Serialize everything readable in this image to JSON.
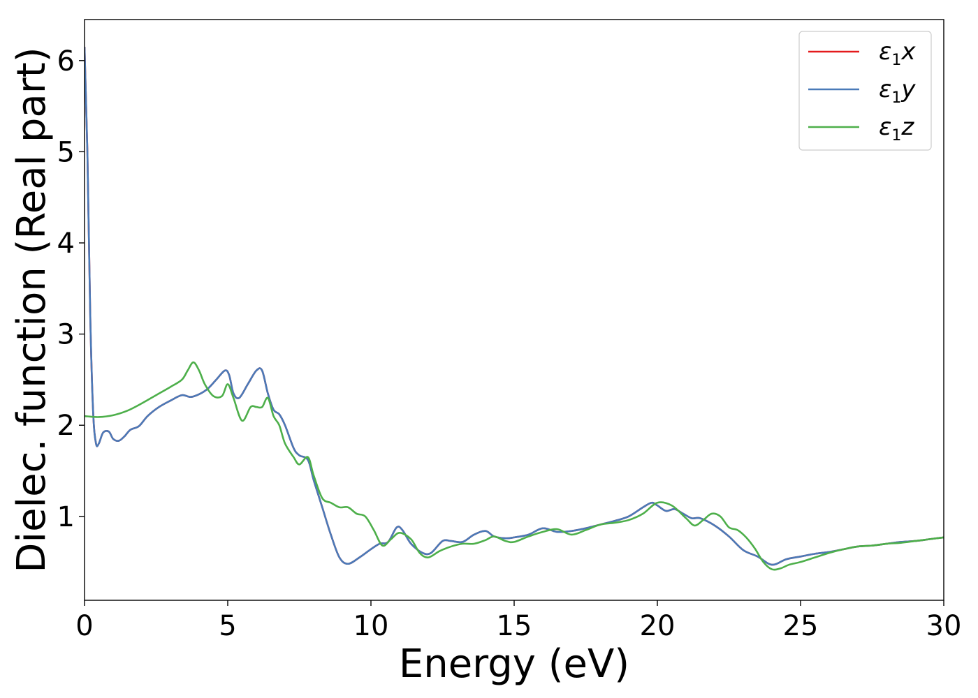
{
  "chart_data": {
    "type": "line",
    "title": "",
    "xlabel": "Energy (eV)",
    "ylabel": "Dielec. function (Real part)",
    "xlim": [
      0,
      30
    ],
    "ylim": [
      0.08,
      6.45
    ],
    "xticks": [
      0,
      5,
      10,
      15,
      20,
      25,
      30
    ],
    "yticks": [
      1,
      2,
      3,
      4,
      5,
      6
    ],
    "grid": false,
    "legend_position": "top-right",
    "series": [
      {
        "name": "ε₁x",
        "label_base": "ε",
        "label_sub": "1",
        "label_var": "x",
        "color": "#e41a1c",
        "x": [
          0,
          0.1,
          0.2,
          0.3,
          0.4,
          0.5,
          0.65,
          0.85,
          1.0,
          1.2,
          1.4,
          1.6,
          1.9,
          2.2,
          2.6,
          3.0,
          3.4,
          3.7,
          4.0,
          4.3,
          4.6,
          4.9,
          5.05,
          5.2,
          5.4,
          5.7,
          6.0,
          6.2,
          6.4,
          6.6,
          6.8,
          7.0,
          7.3,
          7.5,
          7.8,
          8.0,
          8.3,
          8.6,
          8.9,
          9.2,
          9.6,
          10.0,
          10.3,
          10.6,
          10.9,
          11.1,
          11.4,
          11.8,
          12.1,
          12.5,
          12.8,
          13.2,
          13.6,
          14.0,
          14.3,
          14.7,
          15.0,
          15.5,
          16.0,
          16.5,
          17.0,
          17.5,
          18.0,
          18.5,
          19.0,
          19.5,
          19.8,
          20.0,
          20.3,
          20.6,
          20.9,
          21.2,
          21.5,
          22.0,
          22.5,
          23.0,
          23.5,
          24.0,
          24.5,
          25.0,
          25.5,
          26.0,
          26.5,
          27.0,
          27.5,
          28.0,
          28.5,
          29.0,
          29.5,
          30.0
        ],
        "values": [
          6.15,
          5.0,
          3.2,
          2.15,
          1.8,
          1.8,
          1.92,
          1.93,
          1.85,
          1.83,
          1.88,
          1.95,
          1.99,
          2.1,
          2.2,
          2.27,
          2.33,
          2.31,
          2.34,
          2.4,
          2.5,
          2.6,
          2.55,
          2.35,
          2.3,
          2.45,
          2.6,
          2.6,
          2.35,
          2.17,
          2.12,
          2.0,
          1.75,
          1.67,
          1.62,
          1.4,
          1.1,
          0.8,
          0.55,
          0.48,
          0.55,
          0.64,
          0.7,
          0.72,
          0.88,
          0.85,
          0.7,
          0.6,
          0.6,
          0.73,
          0.73,
          0.72,
          0.8,
          0.84,
          0.78,
          0.76,
          0.77,
          0.8,
          0.87,
          0.83,
          0.84,
          0.87,
          0.91,
          0.95,
          1.0,
          1.1,
          1.15,
          1.12,
          1.06,
          1.08,
          1.03,
          0.98,
          0.98,
          0.9,
          0.78,
          0.63,
          0.56,
          0.47,
          0.53,
          0.56,
          0.59,
          0.61,
          0.64,
          0.67,
          0.68,
          0.7,
          0.72,
          0.73,
          0.75,
          0.77
        ]
      },
      {
        "name": "ε₁y",
        "label_base": "ε",
        "label_sub": "1",
        "label_var": "y",
        "color": "#4a7ab8",
        "x": [
          0,
          0.1,
          0.2,
          0.3,
          0.4,
          0.5,
          0.65,
          0.85,
          1.0,
          1.2,
          1.4,
          1.6,
          1.9,
          2.2,
          2.6,
          3.0,
          3.4,
          3.7,
          4.0,
          4.3,
          4.6,
          4.9,
          5.05,
          5.2,
          5.4,
          5.7,
          6.0,
          6.2,
          6.4,
          6.6,
          6.8,
          7.0,
          7.3,
          7.5,
          7.8,
          8.0,
          8.3,
          8.6,
          8.9,
          9.2,
          9.6,
          10.0,
          10.3,
          10.6,
          10.9,
          11.1,
          11.4,
          11.8,
          12.1,
          12.5,
          12.8,
          13.2,
          13.6,
          14.0,
          14.3,
          14.7,
          15.0,
          15.5,
          16.0,
          16.5,
          17.0,
          17.5,
          18.0,
          18.5,
          19.0,
          19.5,
          19.8,
          20.0,
          20.3,
          20.6,
          20.9,
          21.2,
          21.5,
          22.0,
          22.5,
          23.0,
          23.5,
          24.0,
          24.5,
          25.0,
          25.5,
          26.0,
          26.5,
          27.0,
          27.5,
          28.0,
          28.5,
          29.0,
          29.5,
          30.0
        ],
        "values": [
          6.15,
          5.0,
          3.2,
          2.15,
          1.8,
          1.8,
          1.92,
          1.93,
          1.85,
          1.83,
          1.88,
          1.95,
          1.99,
          2.1,
          2.2,
          2.27,
          2.33,
          2.31,
          2.34,
          2.4,
          2.5,
          2.6,
          2.55,
          2.35,
          2.3,
          2.45,
          2.6,
          2.6,
          2.35,
          2.17,
          2.12,
          2.0,
          1.75,
          1.67,
          1.62,
          1.4,
          1.1,
          0.8,
          0.55,
          0.48,
          0.55,
          0.64,
          0.7,
          0.72,
          0.88,
          0.85,
          0.7,
          0.6,
          0.6,
          0.73,
          0.73,
          0.72,
          0.8,
          0.84,
          0.78,
          0.76,
          0.77,
          0.8,
          0.87,
          0.83,
          0.84,
          0.87,
          0.91,
          0.95,
          1.0,
          1.1,
          1.15,
          1.12,
          1.06,
          1.08,
          1.03,
          0.98,
          0.98,
          0.9,
          0.78,
          0.63,
          0.56,
          0.47,
          0.53,
          0.56,
          0.59,
          0.61,
          0.64,
          0.67,
          0.68,
          0.7,
          0.72,
          0.73,
          0.75,
          0.77
        ]
      },
      {
        "name": "ε₁z",
        "label_base": "ε",
        "label_sub": "1",
        "label_var": "z",
        "color": "#4daf4a",
        "x": [
          0,
          0.5,
          1.0,
          1.5,
          2.0,
          2.5,
          3.0,
          3.4,
          3.6,
          3.8,
          4.0,
          4.2,
          4.5,
          4.8,
          5.0,
          5.2,
          5.5,
          5.8,
          6.0,
          6.2,
          6.4,
          6.6,
          6.8,
          7.0,
          7.3,
          7.5,
          7.8,
          8.0,
          8.3,
          8.6,
          8.9,
          9.2,
          9.5,
          9.8,
          10.1,
          10.4,
          10.7,
          11.0,
          11.4,
          11.7,
          12.0,
          12.4,
          12.8,
          13.2,
          13.6,
          14.0,
          14.3,
          14.7,
          15.0,
          15.5,
          16.0,
          16.5,
          17.0,
          17.5,
          18.0,
          18.5,
          19.0,
          19.5,
          20.0,
          20.5,
          21.0,
          21.3,
          21.6,
          21.9,
          22.2,
          22.5,
          22.8,
          23.1,
          23.4,
          23.7,
          24.0,
          24.3,
          24.6,
          25.0,
          25.5,
          26.0,
          26.5,
          27.0,
          27.5,
          28.0,
          28.5,
          29.0,
          29.5,
          30.0
        ],
        "values": [
          2.1,
          2.09,
          2.11,
          2.16,
          2.24,
          2.33,
          2.42,
          2.5,
          2.6,
          2.69,
          2.6,
          2.45,
          2.32,
          2.32,
          2.45,
          2.3,
          2.05,
          2.2,
          2.2,
          2.2,
          2.3,
          2.1,
          2.0,
          1.8,
          1.65,
          1.57,
          1.65,
          1.45,
          1.2,
          1.15,
          1.1,
          1.1,
          1.03,
          1.0,
          0.85,
          0.68,
          0.75,
          0.82,
          0.75,
          0.6,
          0.55,
          0.62,
          0.67,
          0.7,
          0.7,
          0.74,
          0.78,
          0.73,
          0.72,
          0.78,
          0.83,
          0.86,
          0.8,
          0.85,
          0.91,
          0.93,
          0.96,
          1.03,
          1.15,
          1.12,
          0.98,
          0.9,
          0.96,
          1.03,
          1.0,
          0.88,
          0.85,
          0.77,
          0.65,
          0.5,
          0.42,
          0.43,
          0.47,
          0.5,
          0.55,
          0.6,
          0.64,
          0.67,
          0.68,
          0.7,
          0.71,
          0.73,
          0.75,
          0.77
        ]
      }
    ]
  }
}
